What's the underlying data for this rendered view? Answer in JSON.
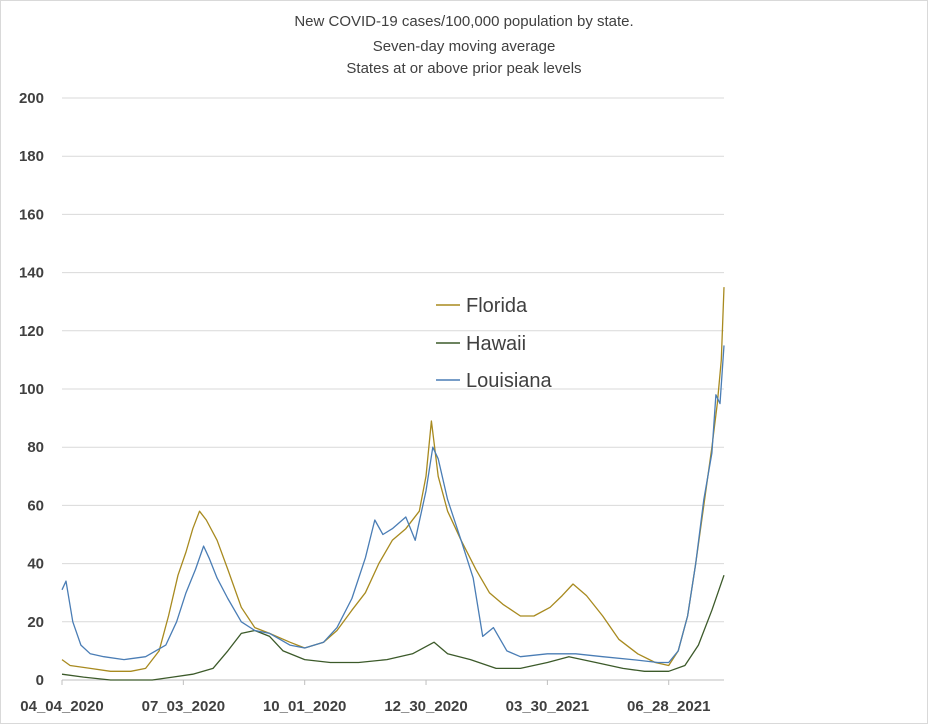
{
  "chart_data": {
    "type": "line",
    "title_lines": [
      "New COVID-19 cases/100,000 population by state.",
      "Seven-day moving average",
      "States at or above prior peak levels"
    ],
    "xlabel": "",
    "ylabel": "",
    "ylim": [
      0,
      200
    ],
    "yticks": [
      0,
      20,
      40,
      60,
      80,
      100,
      120,
      140,
      160,
      180,
      200
    ],
    "xlim": [
      "2020-04-04",
      "2021-08-08"
    ],
    "xtick_labels": [
      {
        "date": "2020-04-04",
        "label": "04_04_2020"
      },
      {
        "date": "2020-07-03",
        "label": "07_03_2020"
      },
      {
        "date": "2020-10-01",
        "label": "10_01_2020"
      },
      {
        "date": "2020-12-30",
        "label": "12_30_2020"
      },
      {
        "date": "2021-03-30",
        "label": "03_30_2021"
      },
      {
        "date": "2021-06-28",
        "label": "06_28_2021"
      }
    ],
    "grid": "horizontal",
    "legend_position": "center",
    "series": [
      {
        "name": "Florida",
        "color": "#a88a1f",
        "points": [
          [
            "2020-04-04",
            7
          ],
          [
            "2020-04-10",
            5
          ],
          [
            "2020-04-25",
            4
          ],
          [
            "2020-05-10",
            3
          ],
          [
            "2020-05-25",
            3
          ],
          [
            "2020-06-05",
            4
          ],
          [
            "2020-06-15",
            10
          ],
          [
            "2020-06-22",
            22
          ],
          [
            "2020-06-29",
            36
          ],
          [
            "2020-07-05",
            44
          ],
          [
            "2020-07-10",
            52
          ],
          [
            "2020-07-15",
            58
          ],
          [
            "2020-07-20",
            55
          ],
          [
            "2020-07-28",
            48
          ],
          [
            "2020-08-05",
            38
          ],
          [
            "2020-08-15",
            25
          ],
          [
            "2020-08-25",
            18
          ],
          [
            "2020-09-05",
            16
          ],
          [
            "2020-09-20",
            13
          ],
          [
            "2020-10-01",
            11
          ],
          [
            "2020-10-15",
            13
          ],
          [
            "2020-10-25",
            17
          ],
          [
            "2020-11-05",
            24
          ],
          [
            "2020-11-15",
            30
          ],
          [
            "2020-11-25",
            40
          ],
          [
            "2020-12-05",
            48
          ],
          [
            "2020-12-15",
            52
          ],
          [
            "2020-12-25",
            58
          ],
          [
            "2020-12-30",
            70
          ],
          [
            "2021-01-03",
            89
          ],
          [
            "2021-01-08",
            70
          ],
          [
            "2021-01-15",
            58
          ],
          [
            "2021-01-25",
            48
          ],
          [
            "2021-02-05",
            38
          ],
          [
            "2021-02-15",
            30
          ],
          [
            "2021-02-25",
            26
          ],
          [
            "2021-03-10",
            22
          ],
          [
            "2021-03-20",
            22
          ],
          [
            "2021-04-01",
            25
          ],
          [
            "2021-04-10",
            29
          ],
          [
            "2021-04-18",
            33
          ],
          [
            "2021-04-28",
            29
          ],
          [
            "2021-05-10",
            22
          ],
          [
            "2021-05-22",
            14
          ],
          [
            "2021-06-05",
            9
          ],
          [
            "2021-06-18",
            6
          ],
          [
            "2021-06-28",
            5
          ],
          [
            "2021-07-05",
            10
          ],
          [
            "2021-07-12",
            22
          ],
          [
            "2021-07-18",
            40
          ],
          [
            "2021-07-24",
            60
          ],
          [
            "2021-07-30",
            80
          ],
          [
            "2021-08-03",
            95
          ],
          [
            "2021-08-06",
            110
          ],
          [
            "2021-08-08",
            135
          ]
        ]
      },
      {
        "name": "Hawaii",
        "color": "#3c5a2a",
        "points": [
          [
            "2020-04-04",
            2
          ],
          [
            "2020-04-20",
            1
          ],
          [
            "2020-05-10",
            0
          ],
          [
            "2020-06-10",
            0
          ],
          [
            "2020-06-25",
            1
          ],
          [
            "2020-07-10",
            2
          ],
          [
            "2020-07-25",
            4
          ],
          [
            "2020-08-05",
            10
          ],
          [
            "2020-08-15",
            16
          ],
          [
            "2020-08-25",
            17
          ],
          [
            "2020-09-05",
            15
          ],
          [
            "2020-09-15",
            10
          ],
          [
            "2020-10-01",
            7
          ],
          [
            "2020-10-20",
            6
          ],
          [
            "2020-11-10",
            6
          ],
          [
            "2020-12-01",
            7
          ],
          [
            "2020-12-20",
            9
          ],
          [
            "2021-01-05",
            13
          ],
          [
            "2021-01-15",
            9
          ],
          [
            "2021-02-01",
            7
          ],
          [
            "2021-02-20",
            4
          ],
          [
            "2021-03-10",
            4
          ],
          [
            "2021-03-30",
            6
          ],
          [
            "2021-04-15",
            8
          ],
          [
            "2021-05-05",
            6
          ],
          [
            "2021-05-25",
            4
          ],
          [
            "2021-06-10",
            3
          ],
          [
            "2021-06-28",
            3
          ],
          [
            "2021-07-10",
            5
          ],
          [
            "2021-07-20",
            12
          ],
          [
            "2021-07-30",
            24
          ],
          [
            "2021-08-08",
            36
          ]
        ]
      },
      {
        "name": "Louisiana",
        "color": "#4a7db5",
        "points": [
          [
            "2020-04-04",
            31
          ],
          [
            "2020-04-07",
            34
          ],
          [
            "2020-04-12",
            20
          ],
          [
            "2020-04-18",
            12
          ],
          [
            "2020-04-25",
            9
          ],
          [
            "2020-05-05",
            8
          ],
          [
            "2020-05-20",
            7
          ],
          [
            "2020-06-05",
            8
          ],
          [
            "2020-06-20",
            12
          ],
          [
            "2020-06-28",
            20
          ],
          [
            "2020-07-05",
            30
          ],
          [
            "2020-07-12",
            38
          ],
          [
            "2020-07-18",
            46
          ],
          [
            "2020-07-22",
            42
          ],
          [
            "2020-07-28",
            35
          ],
          [
            "2020-08-05",
            28
          ],
          [
            "2020-08-15",
            20
          ],
          [
            "2020-08-25",
            17
          ],
          [
            "2020-09-05",
            16
          ],
          [
            "2020-09-20",
            12
          ],
          [
            "2020-10-01",
            11
          ],
          [
            "2020-10-15",
            13
          ],
          [
            "2020-10-25",
            18
          ],
          [
            "2020-11-05",
            28
          ],
          [
            "2020-11-15",
            42
          ],
          [
            "2020-11-22",
            55
          ],
          [
            "2020-11-28",
            50
          ],
          [
            "2020-12-05",
            52
          ],
          [
            "2020-12-15",
            56
          ],
          [
            "2020-12-22",
            48
          ],
          [
            "2020-12-30",
            65
          ],
          [
            "2021-01-04",
            80
          ],
          [
            "2021-01-08",
            76
          ],
          [
            "2021-01-15",
            62
          ],
          [
            "2021-01-25",
            48
          ],
          [
            "2021-02-03",
            35
          ],
          [
            "2021-02-10",
            15
          ],
          [
            "2021-02-18",
            18
          ],
          [
            "2021-02-28",
            10
          ],
          [
            "2021-03-10",
            8
          ],
          [
            "2021-03-30",
            9
          ],
          [
            "2021-04-20",
            9
          ],
          [
            "2021-05-10",
            8
          ],
          [
            "2021-06-01",
            7
          ],
          [
            "2021-06-20",
            6
          ],
          [
            "2021-06-28",
            6
          ],
          [
            "2021-07-05",
            10
          ],
          [
            "2021-07-12",
            22
          ],
          [
            "2021-07-18",
            40
          ],
          [
            "2021-07-24",
            62
          ],
          [
            "2021-07-30",
            78
          ],
          [
            "2021-08-02",
            98
          ],
          [
            "2021-08-05",
            95
          ],
          [
            "2021-08-08",
            115
          ]
        ]
      }
    ]
  }
}
